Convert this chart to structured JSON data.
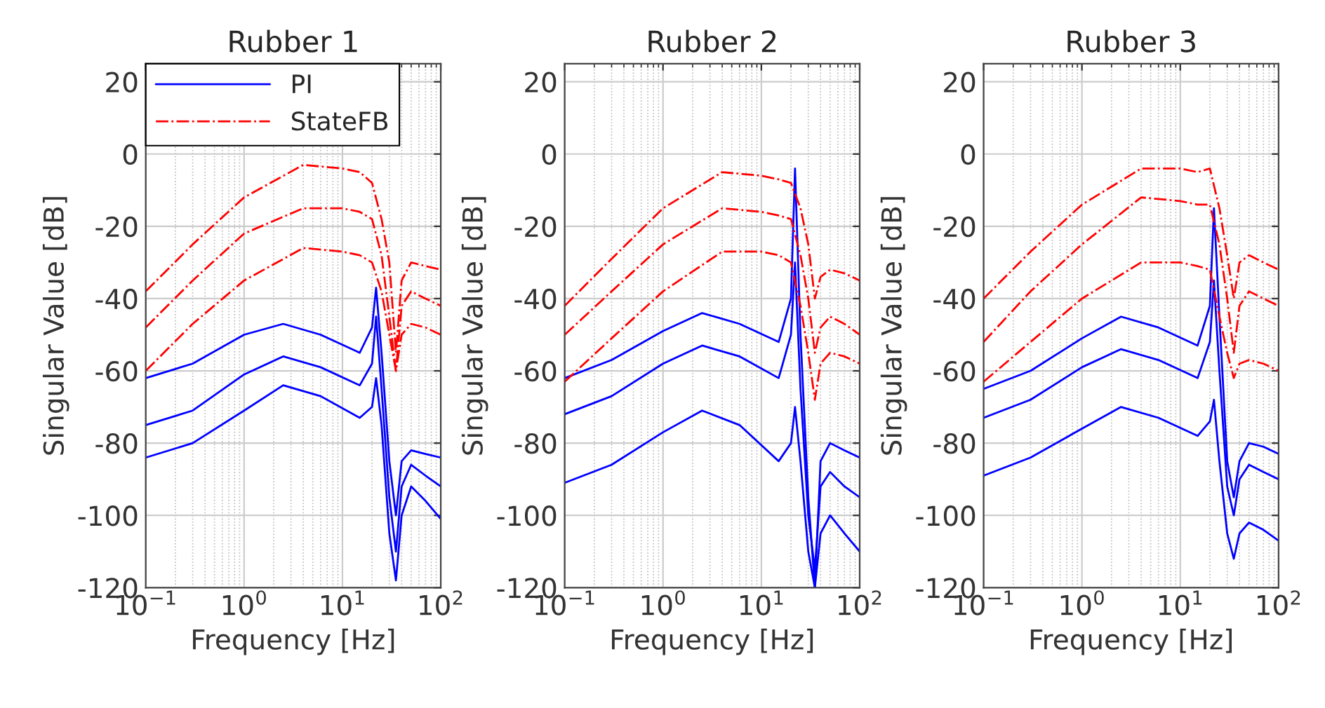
{
  "chart_data": [
    {
      "type": "line",
      "title": "Rubber 1",
      "xlabel": "Frequency [Hz]",
      "ylabel": "Singular Value [dB]",
      "log": "x",
      "grid": true,
      "legend": "top left",
      "xlim": [
        0.1,
        100
      ],
      "xticks": [
        {
          "value": 0.1,
          "label": "10$^{−1}$"
        },
        {
          "value": 1,
          "label": "10$^{0}$"
        },
        {
          "value": 10,
          "label": "10$^{1}$"
        },
        {
          "value": 100,
          "label": "10$^{2}$"
        }
      ],
      "ylim": [
        -120,
        25
      ],
      "yticks": [
        -120,
        -100,
        -80,
        -60,
        -40,
        -20,
        0,
        20
      ],
      "series": [
        {
          "name": "PI",
          "color": "#0000ff",
          "line_style": "solid",
          "x": [
            0.1,
            0.3,
            1,
            2.5,
            6,
            15,
            20,
            22,
            25,
            30,
            35,
            40,
            50,
            70,
            100
          ],
          "values": [
            -62,
            -58,
            -50,
            -47,
            -50,
            -55,
            -48,
            -37,
            -55,
            -85,
            -100,
            -85,
            -82,
            -83,
            -84
          ]
        },
        {
          "color": "#0000ff",
          "line_style": "solid",
          "x": [
            0.1,
            0.3,
            1,
            2.5,
            6,
            15,
            20,
            22,
            25,
            30,
            35,
            40,
            50,
            70,
            100
          ],
          "values": [
            -75,
            -71,
            -61,
            -56,
            -59,
            -64,
            -58,
            -45,
            -65,
            -95,
            -110,
            -92,
            -86,
            -89,
            -92
          ]
        },
        {
          "color": "#0000ff",
          "line_style": "solid",
          "x": [
            0.1,
            0.3,
            1,
            2.5,
            6,
            15,
            20,
            22,
            25,
            30,
            35,
            40,
            50,
            70,
            100
          ],
          "values": [
            -84,
            -80,
            -71,
            -64,
            -67,
            -73,
            -70,
            -62,
            -75,
            -105,
            -118,
            -100,
            -92,
            -96,
            -101
          ]
        },
        {
          "name": "StateFB",
          "color": "#ff0000",
          "line_style": "dashdot",
          "x": [
            0.1,
            0.3,
            1,
            4,
            10,
            15,
            20,
            25,
            30,
            35,
            40,
            50,
            70,
            100
          ],
          "values": [
            -38,
            -25,
            -12,
            -3,
            -4,
            -5,
            -8,
            -18,
            -30,
            -55,
            -35,
            -30,
            -31,
            -32
          ]
        },
        {
          "color": "#ff0000",
          "line_style": "dashdot",
          "x": [
            0.1,
            0.3,
            1,
            4,
            10,
            15,
            20,
            25,
            30,
            35,
            40,
            50,
            70,
            100
          ],
          "values": [
            -48,
            -35,
            -22,
            -15,
            -15,
            -16,
            -18,
            -28,
            -45,
            -60,
            -42,
            -38,
            -40,
            -42
          ]
        },
        {
          "color": "#ff0000",
          "line_style": "dashdot",
          "x": [
            0.1,
            0.3,
            1,
            4,
            10,
            15,
            20,
            25,
            30,
            35,
            40,
            50,
            70,
            100
          ],
          "values": [
            -60,
            -47,
            -35,
            -26,
            -27,
            -28,
            -30,
            -38,
            -50,
            -60,
            -50,
            -47,
            -48,
            -50
          ]
        }
      ]
    },
    {
      "type": "line",
      "title": "Rubber 2",
      "xlabel": "Frequency [Hz]",
      "ylabel": "Singular Value [dB]",
      "log": "x",
      "grid": true,
      "xlim": [
        0.1,
        100
      ],
      "xticks": [
        {
          "value": 0.1,
          "label": "10$^{−1}$"
        },
        {
          "value": 1,
          "label": "10$^{0}$"
        },
        {
          "value": 10,
          "label": "10$^{1}$"
        },
        {
          "value": 100,
          "label": "10$^{2}$"
        }
      ],
      "ylim": [
        -120,
        25
      ],
      "yticks": [
        -120,
        -100,
        -80,
        -60,
        -40,
        -20,
        0,
        20
      ],
      "series": [
        {
          "color": "#0000ff",
          "line_style": "solid",
          "x": [
            0.1,
            0.3,
            1,
            2.5,
            6,
            15,
            20,
            22,
            25,
            30,
            35,
            40,
            50,
            70,
            100
          ],
          "values": [
            -62,
            -57,
            -49,
            -44,
            -47,
            -52,
            -40,
            -4,
            -50,
            -95,
            -120,
            -85,
            -80,
            -82,
            -84
          ]
        },
        {
          "color": "#0000ff",
          "line_style": "solid",
          "x": [
            0.1,
            0.3,
            1,
            2.5,
            6,
            15,
            20,
            22,
            25,
            30,
            35,
            40,
            50,
            70,
            100
          ],
          "values": [
            -72,
            -67,
            -58,
            -53,
            -56,
            -62,
            -50,
            -30,
            -65,
            -100,
            -115,
            -92,
            -88,
            -92,
            -95
          ]
        },
        {
          "color": "#0000ff",
          "line_style": "solid",
          "x": [
            0.1,
            0.3,
            1,
            2.5,
            6,
            15,
            20,
            22,
            25,
            30,
            35,
            40,
            50,
            70,
            100
          ],
          "values": [
            -91,
            -86,
            -77,
            -71,
            -75,
            -85,
            -80,
            -70,
            -85,
            -110,
            -120,
            -105,
            -100,
            -105,
            -110
          ]
        },
        {
          "color": "#ff0000",
          "line_style": "dashdot",
          "x": [
            0.1,
            0.3,
            1,
            4,
            10,
            15,
            20,
            25,
            30,
            35,
            40,
            50,
            70,
            100
          ],
          "values": [
            -42,
            -29,
            -15,
            -5,
            -6,
            -7,
            -8,
            -15,
            -25,
            -40,
            -34,
            -32,
            -33,
            -35
          ]
        },
        {
          "color": "#ff0000",
          "line_style": "dashdot",
          "x": [
            0.1,
            0.3,
            1,
            4,
            10,
            15,
            20,
            25,
            30,
            35,
            40,
            50,
            70,
            100
          ],
          "values": [
            -50,
            -38,
            -25,
            -15,
            -16,
            -17,
            -18,
            -28,
            -40,
            -55,
            -48,
            -45,
            -47,
            -50
          ]
        },
        {
          "color": "#ff0000",
          "line_style": "dashdot",
          "x": [
            0.1,
            0.3,
            1,
            4,
            10,
            15,
            20,
            25,
            30,
            35,
            40,
            50,
            70,
            100
          ],
          "values": [
            -63,
            -51,
            -38,
            -27,
            -27,
            -28,
            -30,
            -42,
            -55,
            -68,
            -58,
            -55,
            -56,
            -58
          ]
        }
      ]
    },
    {
      "type": "line",
      "title": "Rubber 3",
      "xlabel": "Frequency [Hz]",
      "ylabel": "Singular Value [dB]",
      "log": "x",
      "grid": true,
      "xlim": [
        0.1,
        100
      ],
      "xticks": [
        {
          "value": 0.1,
          "label": "10$^{−1}$"
        },
        {
          "value": 1,
          "label": "10$^{0}$"
        },
        {
          "value": 10,
          "label": "10$^{1}$"
        },
        {
          "value": 100,
          "label": "10$^{2}$"
        }
      ],
      "ylim": [
        -120,
        25
      ],
      "yticks": [
        -120,
        -100,
        -80,
        -60,
        -40,
        -20,
        0,
        20
      ],
      "series": [
        {
          "color": "#0000ff",
          "line_style": "solid",
          "x": [
            0.1,
            0.3,
            1,
            2.5,
            6,
            15,
            20,
            22,
            25,
            30,
            35,
            40,
            50,
            70,
            100
          ],
          "values": [
            -65,
            -60,
            -51,
            -45,
            -48,
            -53,
            -42,
            -15,
            -45,
            -85,
            -95,
            -85,
            -80,
            -81,
            -83
          ]
        },
        {
          "color": "#0000ff",
          "line_style": "solid",
          "x": [
            0.1,
            0.3,
            1,
            2.5,
            6,
            15,
            20,
            22,
            25,
            30,
            35,
            40,
            50,
            70,
            100
          ],
          "values": [
            -73,
            -68,
            -59,
            -54,
            -57,
            -62,
            -52,
            -35,
            -60,
            -92,
            -100,
            -90,
            -86,
            -88,
            -90
          ]
        },
        {
          "color": "#0000ff",
          "line_style": "solid",
          "x": [
            0.1,
            0.3,
            1,
            2.5,
            6,
            15,
            20,
            22,
            25,
            30,
            35,
            40,
            50,
            70,
            100
          ],
          "values": [
            -89,
            -84,
            -76,
            -70,
            -73,
            -78,
            -74,
            -68,
            -85,
            -105,
            -112,
            -105,
            -102,
            -104,
            -107
          ]
        },
        {
          "color": "#ff0000",
          "line_style": "dashdot",
          "x": [
            0.1,
            0.3,
            1,
            4,
            10,
            15,
            20,
            25,
            30,
            35,
            40,
            50,
            70,
            100
          ],
          "values": [
            -40,
            -27,
            -14,
            -4,
            -4,
            -5,
            -4,
            -15,
            -28,
            -40,
            -30,
            -28,
            -30,
            -32
          ]
        },
        {
          "color": "#ff0000",
          "line_style": "dashdot",
          "x": [
            0.1,
            0.3,
            1,
            4,
            10,
            15,
            20,
            25,
            30,
            35,
            40,
            50,
            70,
            100
          ],
          "values": [
            -52,
            -38,
            -25,
            -12,
            -13,
            -14,
            -14,
            -25,
            -40,
            -55,
            -42,
            -38,
            -40,
            -42
          ]
        },
        {
          "color": "#ff0000",
          "line_style": "dashdot",
          "x": [
            0.1,
            0.3,
            1,
            4,
            10,
            15,
            20,
            25,
            30,
            35,
            40,
            50,
            70,
            100
          ],
          "values": [
            -63,
            -52,
            -40,
            -30,
            -30,
            -31,
            -32,
            -45,
            -55,
            -62,
            -58,
            -57,
            -58,
            -60
          ]
        }
      ]
    }
  ]
}
